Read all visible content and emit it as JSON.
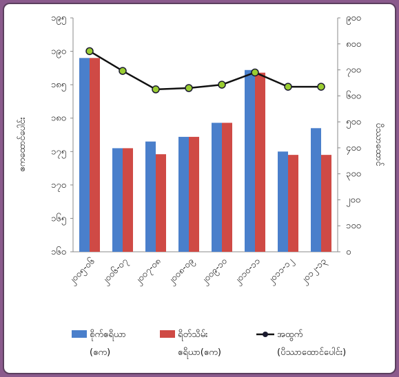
{
  "chart_data": {
    "type": "bar",
    "categories": [
      "၂၀၀၅-၀၆",
      "၂၀၀၆-၀၇",
      "၂၀၀၇-၀၈",
      "၂၀၀၈-၀၉",
      "၂၀၀၉-၁၀",
      "၂၀၁၀-၁၁",
      "၂၀၁၁-၁၂",
      "၂၀၁၂-၁၃"
    ],
    "series": [
      {
        "name": "စိုက်ဧရိယာ (ဧက)",
        "axis": "left",
        "kind": "bar",
        "color": "#4a7fcb",
        "values": [
          189.0,
          175.5,
          176.5,
          177.2,
          179.3,
          187.2,
          175.0,
          178.5
        ]
      },
      {
        "name": "ရိတ်သိမ်း ဧရိယာ(ဧက)",
        "axis": "left",
        "kind": "bar",
        "color": "#cf4a45",
        "values": [
          189.0,
          175.5,
          174.6,
          177.2,
          179.3,
          186.8,
          174.5,
          174.5
        ]
      },
      {
        "name": "အထွက် (ပိဿာထောင်ပေါင်း)",
        "axis": "right",
        "kind": "line",
        "color": "#111111",
        "marker_color": "#9acd32",
        "values": [
          772,
          696,
          625,
          630,
          643,
          690,
          635,
          635
        ]
      }
    ],
    "ylabel_left": "ဧကထောင်ပေါင်း",
    "ylabel_right": "ပိဿာထောင်",
    "ylim_left": [
      160,
      195
    ],
    "yticks_left": [
      "၁၆၀",
      "၁၆၅",
      "၁၇၀",
      "၁၇၅",
      "၁၈၀",
      "၁၈၅",
      "၁၉၀",
      "၁၉၅"
    ],
    "ylim_right": [
      0,
      900
    ],
    "yticks_right": [
      "၀",
      "၁၀၀",
      "၂၀၀",
      "၃၀၀",
      "၄၀၀",
      "၅၀၀",
      "၆၀၀",
      "၇၀၀",
      "၈၀၀",
      "၉၀၀"
    ],
    "grid": false,
    "legend_position": "bottom"
  },
  "legend": {
    "planted_line1": "စိုက်ဧရိယာ",
    "planted_line2": "(ဧက)",
    "harvested_line1": "ရိတ်သိမ်း",
    "harvested_line2": "ဧရိယာ(ဧက)",
    "yield_line1": "အထွက်",
    "yield_line2": "(ပိဿာထောင်ပေါင်း)"
  }
}
